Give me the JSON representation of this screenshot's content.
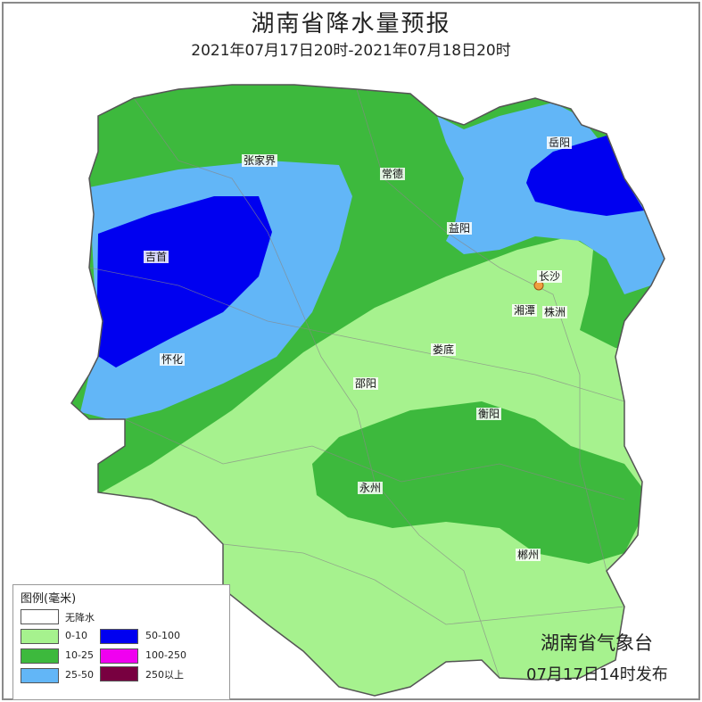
{
  "header": {
    "title": "湖南省降水量预报",
    "subtitle": "2021年07月17日20时-2021年07月18日20时"
  },
  "colors": {
    "none": "#ffffff",
    "c0_10": "#a6f28e",
    "c10_25": "#3db93d",
    "c25_50": "#62b6f7",
    "c50_100": "#0000f0",
    "c100_250": "#f000f0",
    "c250": "#780040"
  },
  "cities": [
    {
      "name": "张家界"
    },
    {
      "name": "常德"
    },
    {
      "name": "岳阳"
    },
    {
      "name": "益阳"
    },
    {
      "name": "吉首"
    },
    {
      "name": "长沙"
    },
    {
      "name": "湘潭"
    },
    {
      "name": "株洲"
    },
    {
      "name": "娄底"
    },
    {
      "name": "怀化"
    },
    {
      "name": "邵阳"
    },
    {
      "name": "衡阳"
    },
    {
      "name": "永州"
    },
    {
      "name": "郴州"
    }
  ],
  "legend": {
    "title": "图例(毫米)",
    "items": [
      {
        "label": "无降水",
        "color": "#ffffff"
      },
      {
        "label": "0-10",
        "color": "#a6f28e"
      },
      {
        "label": "10-25",
        "color": "#3db93d"
      },
      {
        "label": "25-50",
        "color": "#62b6f7"
      },
      {
        "label": "50-100",
        "color": "#0000f0"
      },
      {
        "label": "100-250",
        "color": "#f000f0"
      },
      {
        "label": "250以上",
        "color": "#780040"
      }
    ]
  },
  "footer": {
    "org": "湖南省气象台",
    "published": "07月17日14时发布"
  }
}
